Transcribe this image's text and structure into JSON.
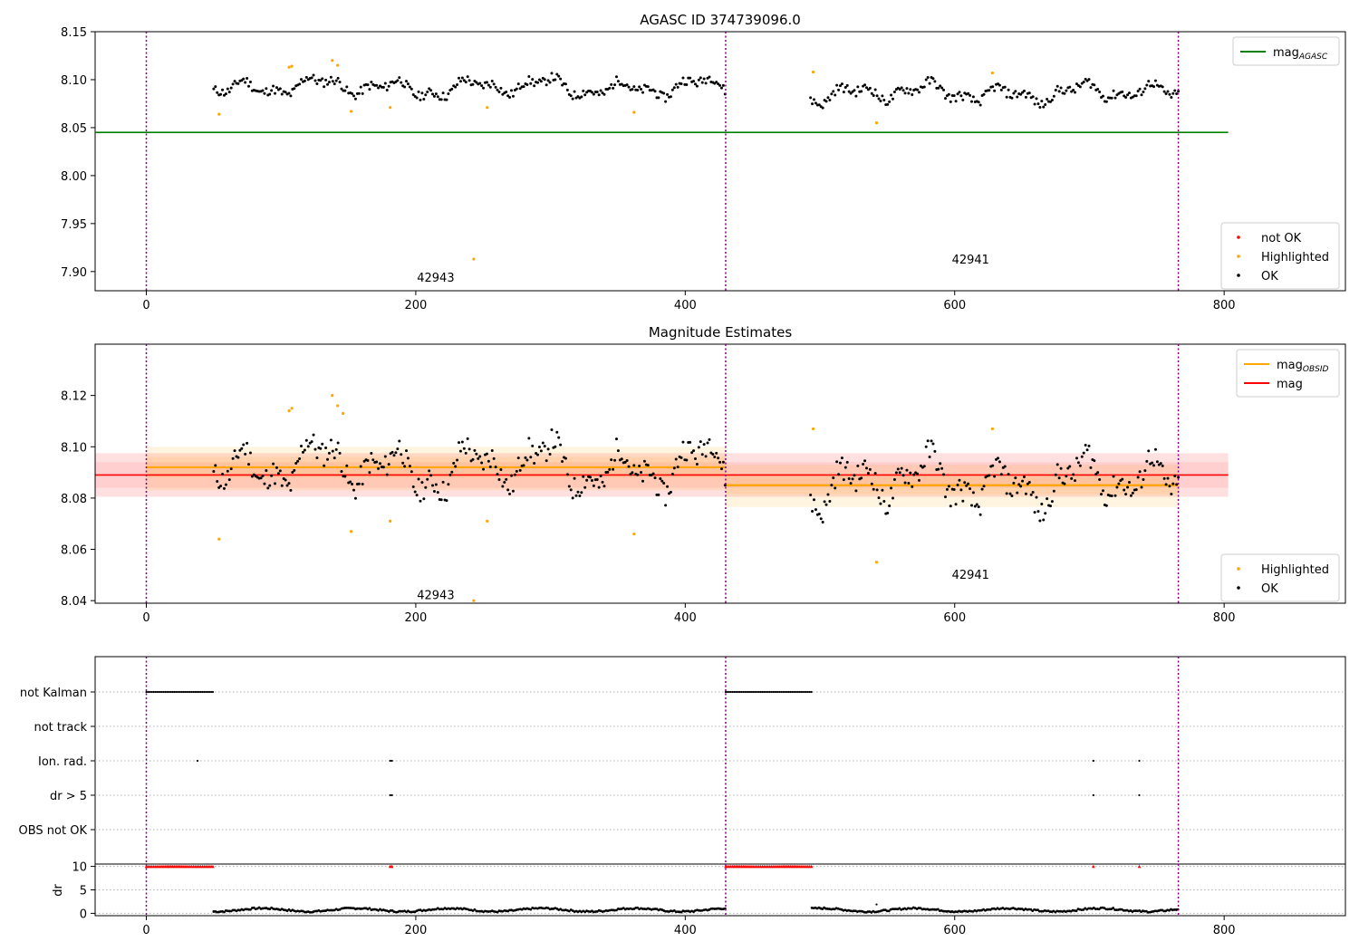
{
  "chart_data": [
    {
      "type": "scatter",
      "title": "AGASC ID 374739096.0",
      "xlabel": "",
      "ylabel": "",
      "xlim": [
        -38,
        890
      ],
      "ylim": [
        7.88,
        8.15
      ],
      "x_ticks": [
        "0",
        "200",
        "400",
        "600",
        "800"
      ],
      "x_tick_values": [
        0,
        200,
        400,
        600,
        800
      ],
      "y_ticks": [
        "7.90",
        "7.95",
        "8.00",
        "8.05",
        "8.10",
        "8.15"
      ],
      "y_tick_values": [
        7.9,
        7.95,
        8.0,
        8.05,
        8.1,
        8.15
      ],
      "grid": false,
      "legend_top_right": [
        {
          "label": "mag",
          "sub": "AGASC",
          "color": "#008000",
          "kind": "line"
        }
      ],
      "legend_bottom_right": [
        {
          "label": "not OK",
          "color": "#ff0000",
          "kind": "dot"
        },
        {
          "label": "Highlighted",
          "color": "#ffa500",
          "kind": "dot"
        },
        {
          "label": "OK",
          "color": "#000000",
          "kind": "dot"
        }
      ],
      "obsid_boundaries": [
        0,
        430,
        766
      ],
      "obsid_labels": [
        {
          "text": "42943",
          "x": 200,
          "y": 7.893
        },
        {
          "text": "42941",
          "x": 597,
          "y": 7.912
        }
      ],
      "mag_agasc": 8.045,
      "mag_agasc_range": [
        -38,
        803
      ],
      "highlighted_points": [
        [
          54,
          8.064
        ],
        [
          106,
          8.113
        ],
        [
          108,
          8.114
        ],
        [
          138,
          8.12
        ],
        [
          142,
          8.115
        ],
        [
          152,
          8.067
        ],
        [
          181,
          8.071
        ],
        [
          243,
          7.913
        ],
        [
          253,
          8.071
        ],
        [
          362,
          8.066
        ],
        [
          495,
          8.108
        ],
        [
          542,
          8.055
        ],
        [
          628,
          8.107
        ]
      ],
      "ok_series": {
        "segments": [
          {
            "x_start": 50,
            "x_end": 430,
            "step": 1.3,
            "base": 8.092
          },
          {
            "x_start": 493,
            "x_end": 766,
            "step": 1.3,
            "base": 8.086
          }
        ]
      }
    },
    {
      "type": "scatter",
      "title": "Magnitude Estimates",
      "xlabel": "",
      "ylabel": "",
      "xlim": [
        -38,
        890
      ],
      "ylim": [
        8.039,
        8.14
      ],
      "x_ticks": [
        "0",
        "200",
        "400",
        "600",
        "800"
      ],
      "x_tick_values": [
        0,
        200,
        400,
        600,
        800
      ],
      "y_ticks": [
        "8.04",
        "8.06",
        "8.08",
        "8.10",
        "8.12"
      ],
      "y_tick_values": [
        8.04,
        8.06,
        8.08,
        8.1,
        8.12
      ],
      "grid": false,
      "legend_top_right": [
        {
          "label": "mag",
          "sub": "OBSID",
          "color": "#ffa500",
          "kind": "line"
        },
        {
          "label": "mag",
          "sub": "",
          "color": "#ff0000",
          "kind": "line"
        }
      ],
      "legend_bottom_right": [
        {
          "label": "Highlighted",
          "color": "#ffa500",
          "kind": "dot"
        },
        {
          "label": "OK",
          "color": "#000000",
          "kind": "dot"
        }
      ],
      "obsid_boundaries": [
        0,
        430,
        766
      ],
      "obsid_labels": [
        {
          "text": "42943",
          "x": 200,
          "y": 8.042
        },
        {
          "text": "42941",
          "x": 597,
          "y": 8.05
        }
      ],
      "mag": 8.089,
      "mag_band_inner": [
        8.084,
        8.094
      ],
      "mag_band_outer": [
        8.0805,
        8.0975
      ],
      "mag_range": [
        -38,
        803
      ],
      "mag_obsid": [
        {
          "x0": 0,
          "x1": 430,
          "value": 8.092,
          "band_inner": [
            8.088,
            8.096
          ],
          "band_outer": [
            8.083,
            8.1
          ]
        },
        {
          "x0": 430,
          "x1": 766,
          "value": 8.085,
          "band_inner": [
            8.0815,
            8.089
          ],
          "band_outer": [
            8.0765,
            8.093
          ]
        }
      ],
      "highlighted_points": [
        [
          54,
          8.064
        ],
        [
          106,
          8.114
        ],
        [
          108,
          8.115
        ],
        [
          138,
          8.12
        ],
        [
          142,
          8.116
        ],
        [
          146,
          8.113
        ],
        [
          152,
          8.067
        ],
        [
          181,
          8.071
        ],
        [
          243,
          8.04
        ],
        [
          253,
          8.071
        ],
        [
          362,
          8.066
        ],
        [
          495,
          8.107
        ],
        [
          542,
          8.055
        ],
        [
          628,
          8.107
        ]
      ]
    },
    {
      "type": "scatter",
      "title": "",
      "xlabel": "",
      "ylabel": "",
      "xlim": [
        -38,
        890
      ],
      "categories": [
        "not Kalman",
        "not track",
        "Ion. rad.",
        "dr > 5",
        "OBS not OK"
      ],
      "grid": "horizontal-dotted",
      "obsid_boundaries": [
        0,
        430,
        766
      ],
      "flags": {
        "not Kalman": [
          [
            0,
            50
          ],
          [
            430,
            494
          ]
        ],
        "not track": [],
        "Ion. rad.": [
          [
            38,
            38
          ],
          [
            181,
            183
          ],
          [
            703,
            703
          ],
          [
            737,
            737
          ]
        ],
        "dr > 5": [
          [
            181,
            183
          ],
          [
            703,
            703
          ],
          [
            737,
            737
          ]
        ],
        "OBS not OK": []
      }
    },
    {
      "type": "scatter",
      "title": "",
      "xlabel": "",
      "ylabel": "dr",
      "xlim": [
        -38,
        890
      ],
      "ylim": [
        -0.5,
        10.5
      ],
      "x_ticks": [
        "0",
        "200",
        "400",
        "600",
        "800"
      ],
      "x_tick_values": [
        0,
        200,
        400,
        600,
        800
      ],
      "y_ticks": [
        "0",
        "5",
        "10"
      ],
      "y_tick_values": [
        0,
        5,
        10
      ],
      "grid": "horizontal-dotted",
      "obsid_boundaries": [
        0,
        430,
        766
      ],
      "dr_clipped": [
        [
          0,
          50
        ],
        [
          181,
          183
        ],
        [
          430,
          494
        ],
        [
          703,
          703
        ],
        [
          737,
          737
        ]
      ],
      "dr_clip_value": 10,
      "dr_ok_segments": [
        {
          "x_start": 50,
          "x_end": 430
        },
        {
          "x_start": 494,
          "x_end": 766
        }
      ],
      "dr_outliers": [
        [
          542,
          1.9
        ]
      ]
    }
  ]
}
